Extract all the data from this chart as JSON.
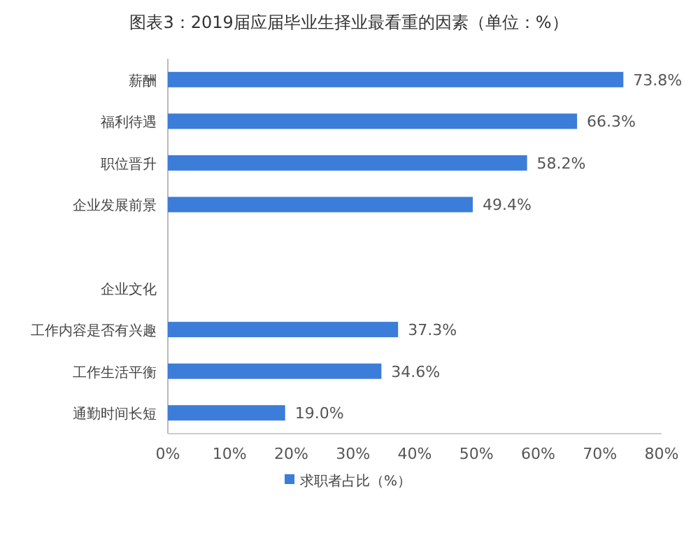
{
  "chart_data": {
    "type": "bar",
    "orientation": "horizontal",
    "title": "图表3：2019届应届毕业生择业最看重的因素（单位：%）",
    "categories": [
      "薪酬",
      "福利待遇",
      "职位晋升",
      "企业发展前景",
      null,
      "企业文化",
      "工作内容是否有兴趣",
      "工作生活平衡",
      "通勤时间长短"
    ],
    "series": [
      {
        "name": "求职者占比（%）",
        "color": "#3b7dd8",
        "values": [
          73.8,
          66.3,
          58.2,
          49.4,
          null,
          null,
          37.3,
          34.6,
          19.0
        ],
        "value_labels": [
          "73.8%",
          "66.3%",
          "58.2%",
          "49.4%",
          null,
          null,
          "37.3%",
          "34.6%",
          "19.0%"
        ]
      }
    ],
    "xlim": [
      0,
      80
    ],
    "xticks": [
      {
        "value": 0,
        "label": "0%"
      },
      {
        "value": 10,
        "label": "10%"
      },
      {
        "value": 20,
        "label": "20%"
      },
      {
        "value": 30,
        "label": "30%"
      },
      {
        "value": 40,
        "label": "40%"
      },
      {
        "value": 50,
        "label": "50%"
      },
      {
        "value": 60,
        "label": "60%"
      },
      {
        "value": 70,
        "label": "70%"
      },
      {
        "value": 80,
        "label": "80%"
      }
    ],
    "grid": false,
    "legend": "bottom"
  }
}
